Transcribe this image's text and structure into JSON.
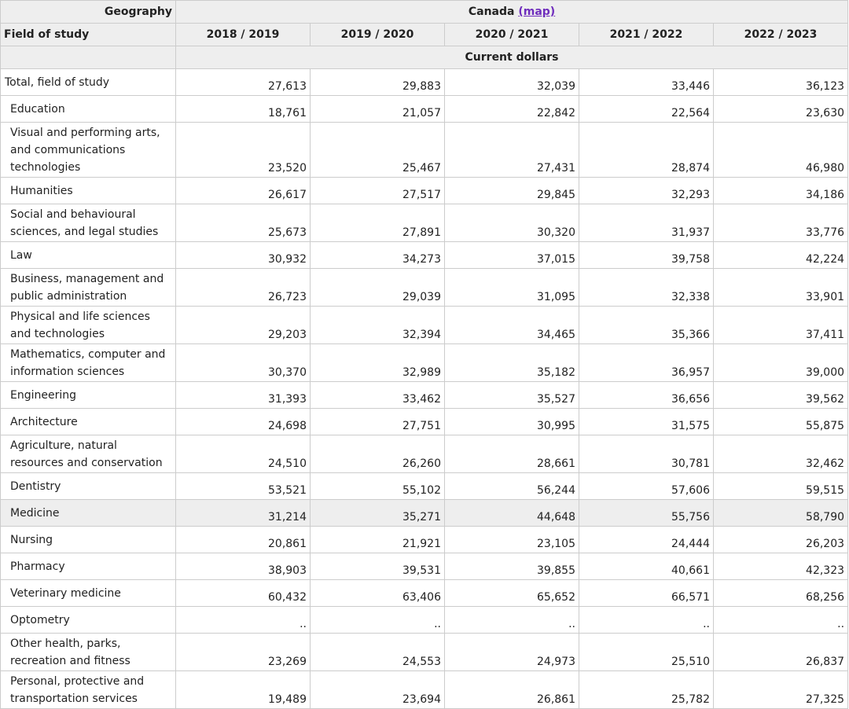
{
  "header": {
    "geography_label": "Geography",
    "country": "Canada",
    "map_link": "(map)",
    "field_label": "Field of study",
    "years": [
      "2018 / 2019",
      "2019 / 2020",
      "2020 / 2021",
      "2021 / 2022",
      "2022 / 2023"
    ],
    "units": "Current dollars"
  },
  "rows": [
    {
      "label": "Total, field of study",
      "values": [
        "27,613",
        "29,883",
        "32,039",
        "33,446",
        "36,123"
      ]
    },
    {
      "label": "Education",
      "values": [
        "18,761",
        "21,057",
        "22,842",
        "22,564",
        "23,630"
      ]
    },
    {
      "label": "Visual and performing arts, and communications technologies",
      "values": [
        "23,520",
        "25,467",
        "27,431",
        "28,874",
        "46,980"
      ]
    },
    {
      "label": "Humanities",
      "values": [
        "26,617",
        "27,517",
        "29,845",
        "32,293",
        "34,186"
      ]
    },
    {
      "label": "Social and behavioural sciences, and legal studies",
      "values": [
        "25,673",
        "27,891",
        "30,320",
        "31,937",
        "33,776"
      ]
    },
    {
      "label": "Law",
      "values": [
        "30,932",
        "34,273",
        "37,015",
        "39,758",
        "42,224"
      ]
    },
    {
      "label": "Business, management and public administration",
      "values": [
        "26,723",
        "29,039",
        "31,095",
        "32,338",
        "33,901"
      ]
    },
    {
      "label": "Physical and life sciences and technologies",
      "values": [
        "29,203",
        "32,394",
        "34,465",
        "35,366",
        "37,411"
      ]
    },
    {
      "label": "Mathematics, computer and information sciences",
      "values": [
        "30,370",
        "32,989",
        "35,182",
        "36,957",
        "39,000"
      ]
    },
    {
      "label": "Engineering",
      "values": [
        "31,393",
        "33,462",
        "35,527",
        "36,656",
        "39,562"
      ]
    },
    {
      "label": "Architecture",
      "values": [
        "24,698",
        "27,751",
        "30,995",
        "31,575",
        "55,875"
      ]
    },
    {
      "label": "Agriculture, natural resources and conservation",
      "values": [
        "24,510",
        "26,260",
        "28,661",
        "30,781",
        "32,462"
      ]
    },
    {
      "label": "Dentistry",
      "values": [
        "53,521",
        "55,102",
        "56,244",
        "57,606",
        "59,515"
      ]
    },
    {
      "label": "Medicine",
      "values": [
        "31,214",
        "35,271",
        "44,648",
        "55,756",
        "58,790"
      ]
    },
    {
      "label": "Nursing",
      "values": [
        "20,861",
        "21,921",
        "23,105",
        "24,444",
        "26,203"
      ]
    },
    {
      "label": "Pharmacy",
      "values": [
        "38,903",
        "39,531",
        "39,855",
        "40,661",
        "42,323"
      ]
    },
    {
      "label": "Veterinary medicine",
      "values": [
        "60,432",
        "63,406",
        "65,652",
        "66,571",
        "68,256"
      ]
    },
    {
      "label": "Optometry",
      "values": [
        "..",
        "..",
        "..",
        "..",
        ".."
      ]
    },
    {
      "label": "Other health, parks, recreation and fitness",
      "values": [
        "23,269",
        "24,553",
        "24,973",
        "25,510",
        "26,837"
      ]
    },
    {
      "label": "Personal, protective and transportation services",
      "values": [
        "19,489",
        "23,694",
        "26,861",
        "25,782",
        "27,325"
      ]
    }
  ],
  "colors": {
    "header_bg": "#eeeeee",
    "border": "#cccccc",
    "link": "#6f2dbd",
    "highlight_row": "#eeeeee"
  }
}
